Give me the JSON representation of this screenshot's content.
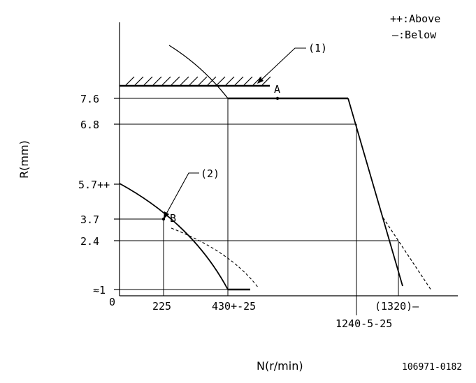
{
  "legend": {
    "above": "++:Above",
    "below": "—:Below"
  },
  "axes": {
    "y_label": "R(mm)",
    "x_label": "N(r/min)",
    "origin": "0"
  },
  "y_ticks": {
    "t76": "7.6",
    "t68": "6.8",
    "t57": "5.7++",
    "t37": "3.7",
    "t24": "2.4",
    "t1": "≈1"
  },
  "x_ticks": {
    "t225": "225",
    "t430": "430+-25",
    "t1240": "1240-5-25",
    "t1320": "(1320)—"
  },
  "callouts": {
    "c1": "(1)",
    "c2": "(2)",
    "pointA": "A",
    "pointB": "B"
  },
  "figure_id": "106971-0182"
}
